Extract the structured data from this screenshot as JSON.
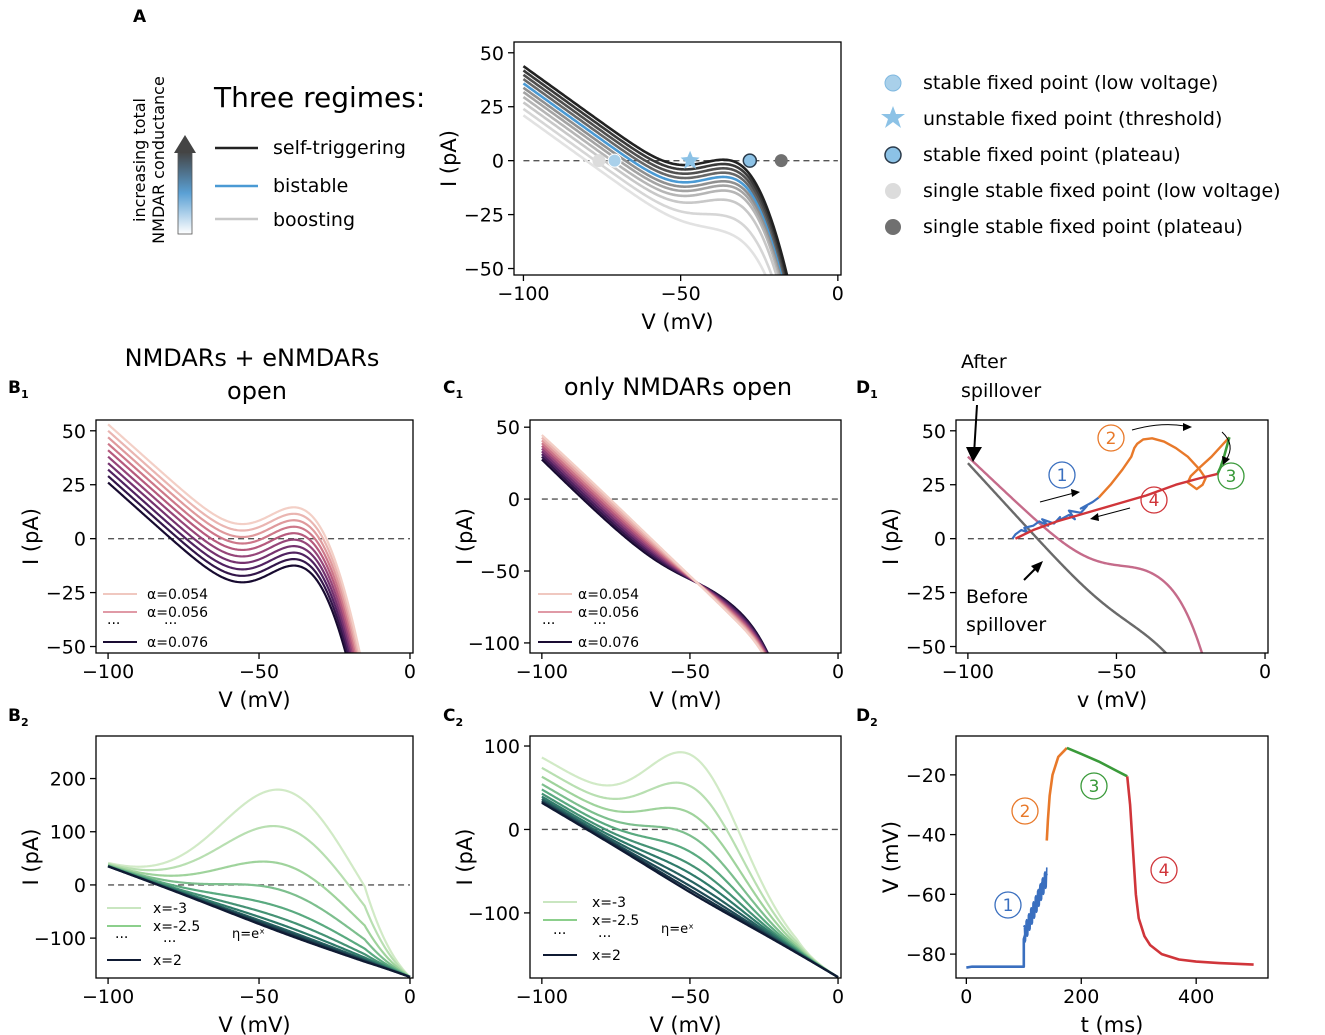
{
  "figure": {
    "panel_labels": {
      "A": "A",
      "B1": "B",
      "B1_sub": "1",
      "B2": "B",
      "B2_sub": "2",
      "C1": "C",
      "C1_sub": "1",
      "C2": "C",
      "C2_sub": "2",
      "D1": "D",
      "D1_sub": "1",
      "D2": "D",
      "D2_sub": "2"
    },
    "titles": {
      "B1_line1": "NMDARs + eNMDARs",
      "B1_line2": "open",
      "C1": "only NMDARs open"
    },
    "panelA": {
      "regimes_title": "Three regimes:",
      "arrow_label_line1": "increasing total",
      "arrow_label_line2": "NMDAR conductance",
      "regimes": [
        {
          "label": "self-triggering",
          "color": "#222222"
        },
        {
          "label": "bistable",
          "color": "#4a9ad4"
        },
        {
          "label": "boosting",
          "color": "#c8c8c8"
        }
      ],
      "fixed_point_legend": [
        {
          "label": "stable fixed point (low voltage)",
          "marker": "circle",
          "color": "#a9d0ea"
        },
        {
          "label": "unstable fixed point (threshold)",
          "marker": "star",
          "color": "#8cc2e6"
        },
        {
          "label": "stable fixed point (plateau)",
          "marker": "circle",
          "color": "#8cc2e6"
        },
        {
          "label": "single stable fixed point (low voltage)",
          "marker": "circle",
          "color": "#dcdcdc"
        },
        {
          "label": "single stable fixed point (plateau)",
          "marker": "circle",
          "color": "#707070"
        }
      ]
    },
    "B1_legend": [
      "α=0.054",
      "α=0.056",
      "···",
      "···",
      "α=0.076"
    ],
    "C1_legend": [
      "α=0.054",
      "α=0.056",
      "···",
      "···",
      "α=0.076"
    ],
    "B2_legend": [
      "x=-3",
      "x=-2.5",
      "···",
      "···",
      "x=2"
    ],
    "C2_legend": [
      "x=-3",
      "x=-2.5",
      "···",
      "···",
      "x=2"
    ],
    "eta_label": "η=eˣ",
    "D1_annotations": {
      "after_line1": "After",
      "after_line2": "spillover",
      "before_line1": "Before",
      "before_line2": "spillover",
      "n1": "1",
      "n2": "2",
      "n3": "3",
      "n4": "4"
    },
    "D2_annotations": {
      "n1": "1",
      "n2": "2",
      "n3": "3",
      "n4": "4"
    }
  },
  "chart_data": [
    {
      "id": "A",
      "type": "line",
      "xlabel": "V (mV)",
      "ylabel": "I (pA)",
      "xlim": [
        -103,
        1
      ],
      "ylim": [
        -53,
        55
      ],
      "xticks": [
        -100,
        -50,
        0
      ],
      "yticks": [
        -50,
        -25,
        0,
        25,
        50
      ],
      "xtick_labels": [
        "−100",
        "−50",
        "0"
      ],
      "ytick_labels": [
        "−50",
        "−25",
        "0",
        "25",
        "50"
      ],
      "params": {
        "a": [
          3.8,
          1.8,
          -0.2,
          -2.2,
          -4.2,
          -6.2,
          -8.2,
          -10.5,
          -13,
          -16,
          -19
        ],
        "b": [
          27,
          27,
          27,
          27,
          27,
          27,
          27,
          27,
          25,
          20,
          15
        ],
        "bistable_index": 4
      },
      "fixed_points": [
        {
          "v": -76,
          "kind": "single-low"
        },
        {
          "v": -71,
          "kind": "stable-low"
        },
        {
          "v": -47,
          "kind": "unstable"
        },
        {
          "v": -28,
          "kind": "stable-plateau"
        },
        {
          "v": -18,
          "kind": "single-plateau"
        }
      ]
    },
    {
      "id": "B1",
      "type": "line",
      "xlabel": "V (mV)",
      "ylabel": "I (pA)",
      "xlim": [
        -104,
        1
      ],
      "ylim": [
        -53,
        55
      ],
      "xticks": [
        -100,
        -50,
        0
      ],
      "yticks": [
        -50,
        -25,
        0,
        25,
        50
      ],
      "xtick_labels": [
        "−100",
        "−50",
        "0"
      ],
      "ytick_labels": [
        "−50",
        "−25",
        "0",
        "25",
        "50"
      ],
      "params": {
        "a": [
          -14,
          -11,
          -8,
          -5,
          -2,
          1,
          4,
          7,
          10,
          13
        ],
        "b": [
          42,
          42,
          42,
          42,
          42,
          42,
          42,
          42,
          42,
          42
        ]
      }
    },
    {
      "id": "C1",
      "type": "line",
      "xlabel": "V (mV)",
      "ylabel": "I (pA)",
      "xlim": [
        -104,
        1
      ],
      "ylim": [
        -107,
        55
      ],
      "xticks": [
        -100,
        -50,
        0
      ],
      "yticks": [
        -100,
        -50,
        0,
        50
      ],
      "xtick_labels": [
        "−100",
        "−50",
        "0"
      ],
      "ytick_labels": [
        "−100",
        "−50",
        "0",
        "50"
      ],
      "params": {
        "a": [
          -10,
          -8,
          -6,
          -4,
          -2,
          0,
          2,
          4,
          6,
          8
        ],
        "b": [
          20,
          18,
          16,
          14,
          12,
          10,
          8,
          6,
          4,
          2
        ]
      }
    },
    {
      "id": "B2",
      "type": "line",
      "xlabel": "V (mV)",
      "ylabel": "I (pA)",
      "xlim": [
        -104,
        1
      ],
      "ylim": [
        -175,
        280
      ],
      "xticks": [
        -100,
        -50,
        0
      ],
      "yticks": [
        -100,
        0,
        100,
        200
      ],
      "xtick_labels": [
        "−100",
        "−50",
        "0"
      ],
      "ytick_labels": [
        "−100",
        "0",
        "100",
        "200"
      ],
      "params": {
        "b": [
          265,
          195,
          125,
          75,
          42,
          22,
          10,
          3,
          0,
          -3,
          -5
        ]
      }
    },
    {
      "id": "C2",
      "type": "line",
      "xlabel": "V (mV)",
      "ylabel": "I (pA)",
      "xlim": [
        -104,
        1
      ],
      "ylim": [
        -178,
        112
      ],
      "xticks": [
        -100,
        -50,
        0
      ],
      "yticks": [
        -100,
        0,
        100
      ],
      "xtick_labels": [
        "−100",
        "−50",
        "0"
      ],
      "ytick_labels": [
        "−100",
        "0",
        "100"
      ],
      "params": {
        "b": [
          150,
          115,
          85,
          60,
          42,
          28,
          18,
          10,
          4,
          0,
          -3
        ]
      }
    },
    {
      "id": "D1",
      "type": "line",
      "xlabel": "v (mV)",
      "ylabel": "I (pA)",
      "xlim": [
        -104,
        1
      ],
      "ylim": [
        -53,
        55
      ],
      "xticks": [
        -100,
        -50,
        0
      ],
      "yticks": [
        -50,
        -25,
        0,
        25,
        50
      ],
      "xtick_labels": [
        "−100",
        "−50",
        "0"
      ],
      "ytick_labels": [
        "−50",
        "−25",
        "0",
        "25",
        "50"
      ],
      "series": [
        {
          "name": "before spillover",
          "color": "#6a6a6a"
        },
        {
          "name": "after spillover",
          "color": "#c56b8a"
        },
        {
          "name": "1",
          "color": "#3a6fbf"
        },
        {
          "name": "2",
          "color": "#e8792a"
        },
        {
          "name": "3",
          "color": "#3a9a3a"
        },
        {
          "name": "4",
          "color": "#d0353a"
        }
      ]
    },
    {
      "id": "D2",
      "type": "line",
      "xlabel": "t (ms)",
      "ylabel": "V (mV)",
      "xlim": [
        -18,
        525
      ],
      "ylim": [
        -88,
        -7
      ],
      "xticks": [
        0,
        200,
        400
      ],
      "yticks": [
        -80,
        -60,
        -40,
        -20
      ],
      "xtick_labels": [
        "0",
        "200",
        "400"
      ],
      "ytick_labels": [
        "−80",
        "−60",
        "−40",
        "−20"
      ],
      "series": [
        {
          "name": "1",
          "color": "#3a6fbf",
          "x": [
            0,
            10,
            100,
            100,
            105,
            110,
            115,
            120,
            125,
            130,
            135,
            140
          ],
          "y": [
            -84.5,
            -84.2,
            -84.2,
            -75,
            -72,
            -70,
            -67,
            -64,
            -60,
            -57,
            -55,
            -53
          ]
        },
        {
          "name": "2",
          "color": "#e8792a",
          "x": [
            140,
            142,
            145,
            150,
            160,
            170,
            175
          ],
          "y": [
            -42,
            -35,
            -27,
            -20,
            -14,
            -12,
            -11
          ]
        },
        {
          "name": "3",
          "color": "#3a9a3a",
          "x": [
            175,
            200,
            230,
            260,
            280
          ],
          "y": [
            -11,
            -13,
            -15.5,
            -18.5,
            -20.5
          ]
        },
        {
          "name": "4",
          "color": "#d0353a",
          "x": [
            280,
            285,
            290,
            295,
            300,
            310,
            320,
            340,
            370,
            400,
            440,
            500
          ],
          "y": [
            -20.5,
            -30,
            -45,
            -60,
            -68,
            -74,
            -77,
            -80,
            -81.8,
            -82.5,
            -83,
            -83.5
          ]
        }
      ]
    }
  ]
}
